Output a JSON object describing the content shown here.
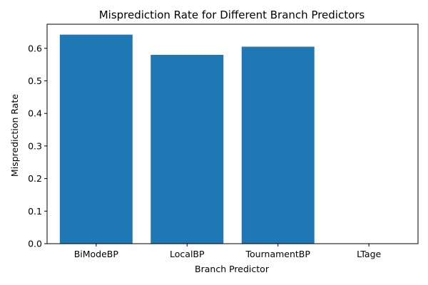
{
  "chart_data": {
    "type": "bar",
    "title": "Misprediction Rate for Different Branch Predictors",
    "xlabel": "Branch Predictor",
    "ylabel": "Misprediction Rate",
    "categories": [
      "BiModeBP",
      "LocalBP",
      "TournamentBP",
      "LTage"
    ],
    "values": [
      0.642,
      0.58,
      0.605,
      0.0
    ],
    "ylim": [
      0,
      0.674
    ],
    "yticks": [
      "0.0",
      "0.1",
      "0.2",
      "0.3",
      "0.4",
      "0.5",
      "0.6"
    ],
    "bar_color": "#1f77b4",
    "grid": false
  }
}
